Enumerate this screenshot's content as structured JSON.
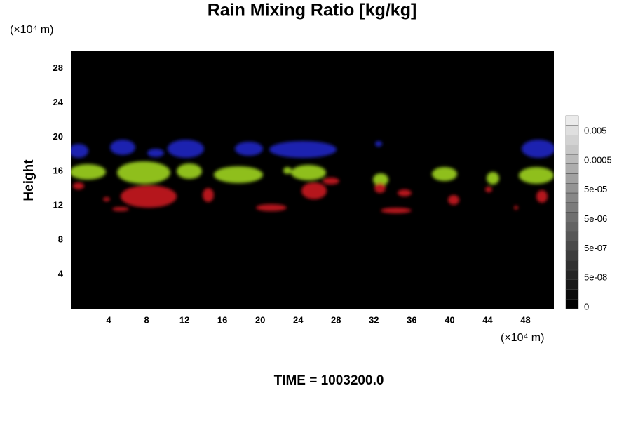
{
  "chart_data": {
    "type": "heatmap",
    "title": "Rain Mixing Ratio [kg/kg]",
    "ylabel": "Height",
    "x_unit_label": "(×10⁴ m)",
    "y_unit_label": "(×10⁴ m)",
    "time_label": "TIME = 1003200.0",
    "plot_background": "#000000",
    "xlim": [
      0,
      51
    ],
    "xticks": [
      4,
      8,
      12,
      16,
      20,
      24,
      28,
      32,
      36,
      40,
      44,
      48
    ],
    "ylim": [
      0,
      30
    ],
    "yticks": [
      4,
      8,
      12,
      16,
      20,
      24,
      28
    ],
    "colorbar": {
      "ticks": [
        0,
        {
          "value": 5e-08,
          "label": "5e-08"
        },
        {
          "value": 5e-07,
          "label": "5e-07"
        },
        {
          "value": 5e-06,
          "label": "5e-06"
        },
        {
          "value": 5e-05,
          "label": "5e-05"
        },
        0.0005,
        0.005
      ]
    }
  }
}
